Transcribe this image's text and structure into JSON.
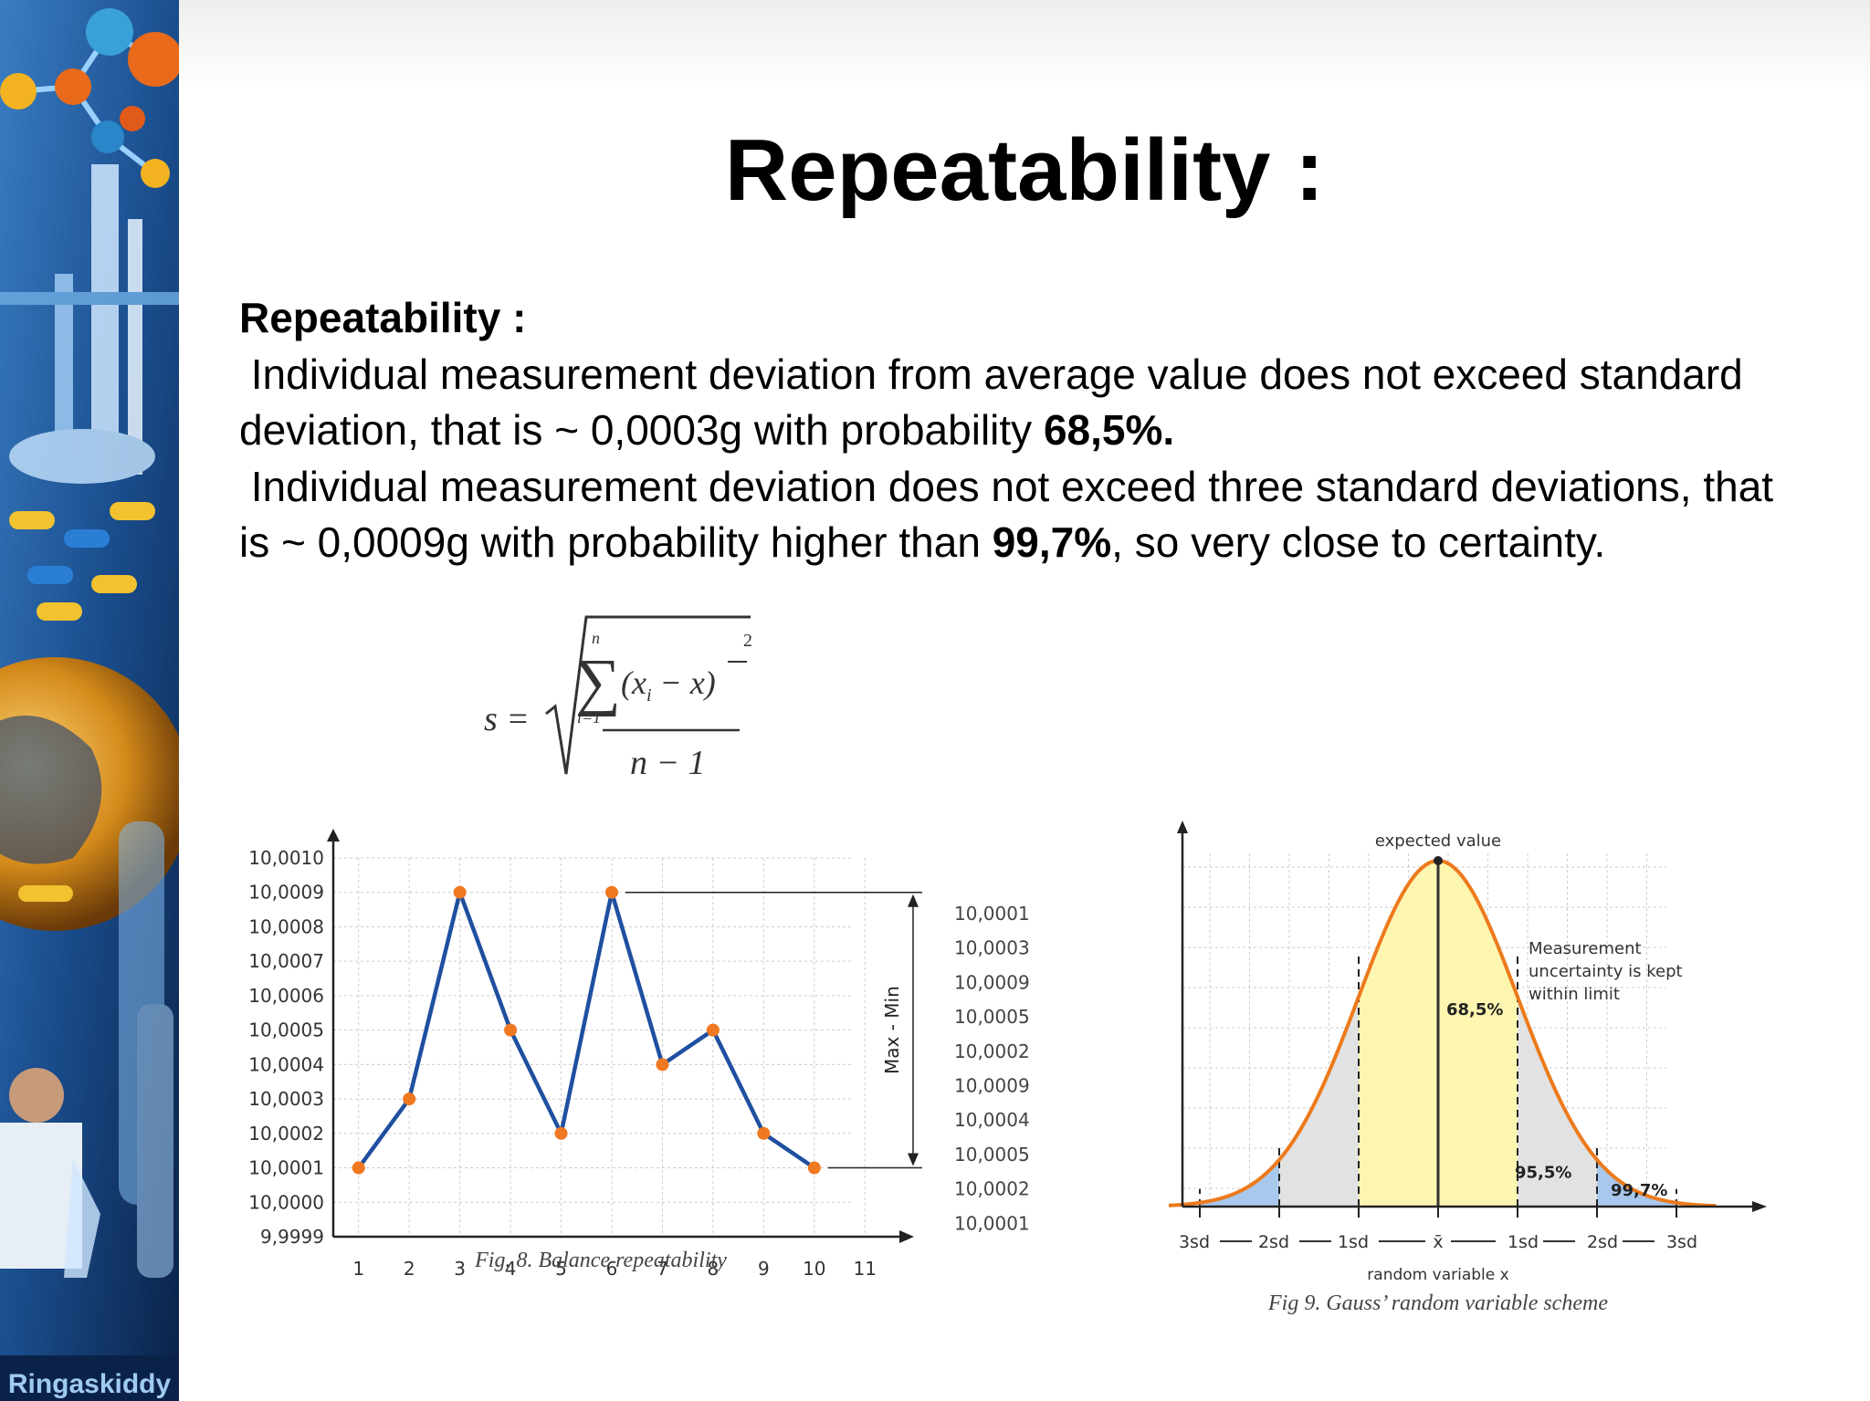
{
  "slide": {
    "title": "Repeatability :",
    "body": {
      "heading": "Repeatability :",
      "p1_pre": "Individual measurement deviation from average value does not exceed standard deviation, that is ~ 0,0003g with probability ",
      "p1_bold": "68,5%.",
      "p2_pre": "Individual measurement deviation does not exceed three standard deviations, that is ~ 0,0009g with probability higher than ",
      "p2_bold": "99,7%",
      "p2_post": ", so very close to certainty."
    },
    "formula": {
      "lhs": "s =",
      "sum_upper": "n",
      "sum_lower": "i=1",
      "sum_symbol": "∑",
      "term": "(x",
      "term_sub": "i",
      "term_mid": " − x)",
      "exponent": "2",
      "denominator": "n − 1"
    },
    "sidebar": {
      "watermark": "Ringaskiddy",
      "colors": {
        "dark": "#0a2a5a",
        "mid": "#1f5fa8",
        "light": "#6fb2e8",
        "accent": "#f0a020"
      }
    }
  },
  "chart_data": [
    {
      "type": "line",
      "x": [
        1,
        2,
        3,
        4,
        5,
        6,
        7,
        8,
        9,
        10
      ],
      "series": [
        {
          "values": [
            10.0001,
            10.0003,
            10.0009,
            10.0005,
            10.0002,
            10.0009,
            10.0004,
            10.0005,
            10.0002,
            10.0001
          ]
        }
      ],
      "x_ticks": [
        "1",
        "2",
        "3",
        "4",
        "5",
        "6",
        "7",
        "8",
        "9",
        "10",
        "11"
      ],
      "y_ticks": [
        "9,9999",
        "10,0000",
        "10,0001",
        "10,0002",
        "10,0003",
        "10,0004",
        "10,0005",
        "10,0006",
        "10,0007",
        "10,0008",
        "10,0009",
        "10,0010"
      ],
      "ylim": [
        9.9999,
        10.001
      ],
      "xlim": [
        0.5,
        11.5
      ],
      "grid": true,
      "value_list": [
        "10,0001",
        "10,0003",
        "10,0009",
        "10,0005",
        "10,0002",
        "10,0009",
        "10,0004",
        "10,0005",
        "10,0002",
        "10,0001"
      ],
      "range_label": "Max - Min",
      "caption": "Fig. 8. Balance repeatability",
      "colors": {
        "line": "#1f4fa0",
        "marker": "#f07820",
        "axis": "#222222",
        "grid": "#cccccc"
      }
    },
    {
      "type": "area",
      "distribution": "normal",
      "mean": 0,
      "sd": 1,
      "xlim": [
        -3.5,
        3.5
      ],
      "x_ticks": [
        "3sd",
        "2sd",
        "1sd",
        "x̄",
        "1sd",
        "2sd",
        "3sd"
      ],
      "xlabel": "random variable x",
      "top_label": "expected value",
      "annotation": "Measurement uncertainty is kept within limit",
      "regions": [
        {
          "range": [
            -1,
            1
          ],
          "label": "68,5%",
          "color": "#fdf6b0"
        },
        {
          "range": [
            -2,
            2
          ],
          "label": "95,5%",
          "color": "#e2e2e2"
        },
        {
          "range": [
            -3,
            3
          ],
          "label": "99,7%",
          "color": "#a9c8ee"
        }
      ],
      "grid": true,
      "caption": "Fig 9.  Gauss’ random variable scheme",
      "colors": {
        "curve": "#ec7a1c",
        "axis": "#222222",
        "grid": "#cccccc"
      }
    }
  ]
}
